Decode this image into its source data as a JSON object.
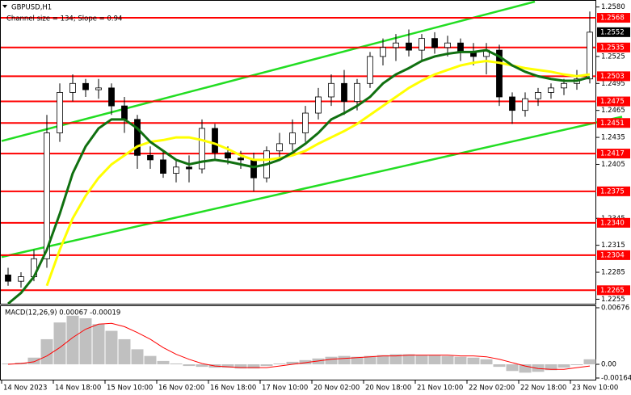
{
  "chart_data": [
    {
      "type": "candlestick",
      "title": "GBPUSD,H1",
      "subtitle": "Channel size = 134; Slope = 0.94",
      "categories": [
        "14 Nov 2023",
        null,
        null,
        null,
        "14 Nov 18:00",
        null,
        null,
        null,
        "15 Nov 10:00",
        null,
        null,
        null,
        "16 Nov 02:00",
        null,
        null,
        null,
        "16 Nov 18:00",
        null,
        null,
        null,
        "17 Nov 10:00",
        null,
        null,
        null,
        "20 Nov 02:00",
        null,
        null,
        null,
        "20 Nov 18:00",
        null,
        null,
        null,
        "21 Nov 10:00",
        null,
        null,
        null,
        "22 Nov 02:00",
        null,
        null,
        null,
        "22 Nov 18:00",
        null,
        null,
        null,
        "23 Nov 10:00",
        null
      ],
      "open": [
        1.2282,
        1.2275,
        1.228,
        1.23,
        1.244,
        1.2485,
        1.2495,
        1.2488,
        1.249,
        1.247,
        1.2455,
        1.2415,
        1.241,
        1.2395,
        1.2402,
        1.24,
        1.2445,
        1.2418,
        1.2412,
        1.241,
        1.239,
        1.242,
        1.2428,
        1.244,
        1.2462,
        1.248,
        1.2495,
        1.2475,
        1.2495,
        1.2525,
        1.2535,
        1.254,
        1.2532,
        1.2545,
        1.2535,
        1.254,
        1.253,
        1.2525,
        1.2532,
        1.248,
        1.2465,
        1.2478,
        1.2485,
        1.249,
        1.2495,
        1.25
      ],
      "high": [
        1.229,
        1.2285,
        1.231,
        1.246,
        1.2495,
        1.2505,
        1.25,
        1.25,
        1.2495,
        1.248,
        1.246,
        1.2425,
        1.242,
        1.241,
        1.2415,
        1.2455,
        1.245,
        1.2425,
        1.242,
        1.2418,
        1.2425,
        1.244,
        1.2455,
        1.247,
        1.249,
        1.2505,
        1.251,
        1.25,
        1.253,
        1.2545,
        1.255,
        1.2555,
        1.255,
        1.2552,
        1.2548,
        1.2545,
        1.254,
        1.254,
        1.2538,
        1.2485,
        1.2485,
        1.249,
        1.2495,
        1.25,
        1.251,
        1.2575
      ],
      "low": [
        1.227,
        1.2268,
        1.2275,
        1.229,
        1.243,
        1.2475,
        1.248,
        1.2478,
        1.246,
        1.244,
        1.24,
        1.24,
        1.239,
        1.2385,
        1.2385,
        1.2395,
        1.241,
        1.2405,
        1.24,
        1.2375,
        1.2385,
        1.241,
        1.242,
        1.243,
        1.2455,
        1.247,
        1.246,
        1.2465,
        1.249,
        1.2515,
        1.252,
        1.2525,
        1.252,
        1.2528,
        1.2525,
        1.252,
        1.2515,
        1.2505,
        1.247,
        1.245,
        1.2458,
        1.247,
        1.2478,
        1.2482,
        1.2488,
        1.2495
      ],
      "close": [
        1.2275,
        1.228,
        1.23,
        1.244,
        1.2485,
        1.2495,
        1.2488,
        1.249,
        1.247,
        1.2455,
        1.2415,
        1.241,
        1.2395,
        1.2402,
        1.24,
        1.2445,
        1.2418,
        1.2412,
        1.241,
        1.239,
        1.242,
        1.2428,
        1.244,
        1.2462,
        1.248,
        1.2495,
        1.2475,
        1.2495,
        1.2525,
        1.2535,
        1.254,
        1.2532,
        1.2545,
        1.2535,
        1.254,
        1.253,
        1.2525,
        1.2532,
        1.248,
        1.2465,
        1.2478,
        1.2485,
        1.249,
        1.2495,
        1.25,
        1.2552
      ],
      "up_color": "#ffffff",
      "down_color": "#000000",
      "lines": [
        {
          "color": "#ffff00",
          "values": [
            null,
            null,
            null,
            1.227,
            1.231,
            1.2345,
            1.237,
            1.239,
            1.2405,
            1.2415,
            1.2425,
            1.243,
            1.2432,
            1.2435,
            1.2435,
            1.2432,
            1.2428,
            1.2422,
            1.2415,
            1.241,
            1.241,
            1.2412,
            1.2415,
            1.242,
            1.2428,
            1.2435,
            1.2442,
            1.245,
            1.246,
            1.247,
            1.248,
            1.249,
            1.2498,
            1.2505,
            1.251,
            1.2515,
            1.2518,
            1.252,
            1.2518,
            1.2515,
            1.2512,
            1.251,
            1.2508,
            1.2505,
            1.2503,
            1.2505
          ]
        },
        {
          "color": "#107010",
          "values": [
            1.225,
            1.2262,
            1.228,
            1.231,
            1.235,
            1.2395,
            1.2425,
            1.2445,
            1.2455,
            1.2455,
            1.2445,
            1.243,
            1.242,
            1.241,
            1.2405,
            1.2408,
            1.241,
            1.2408,
            1.2405,
            1.2402,
            1.2405,
            1.241,
            1.2418,
            1.2428,
            1.244,
            1.2455,
            1.2462,
            1.247,
            1.248,
            1.2495,
            1.2505,
            1.2512,
            1.252,
            1.2525,
            1.2528,
            1.253,
            1.253,
            1.2532,
            1.2525,
            1.2515,
            1.2508,
            1.2503,
            1.25,
            1.2498,
            1.2498,
            1.2502
          ]
        }
      ],
      "trend_lines": [
        {
          "color": "#22dd22",
          "x": [
            0,
            41.25
          ],
          "values": [
            1.2431,
            1.2586
          ]
        },
        {
          "color": "#22dd22",
          "x": [
            0,
            48
          ],
          "values": [
            1.2302,
            1.2458
          ]
        }
      ],
      "ylim": [
        1.225,
        1.2586
      ],
      "yticks": [
        {
          "value": 1.258,
          "label": "1.2580"
        },
        1.2525,
        1.2495,
        1.2465,
        1.2435,
        1.2405,
        1.2345,
        1.2315,
        1.2285,
        1.2255
      ],
      "levels": [
        1.2568,
        1.2535,
        1.2503,
        1.2475,
        1.2451,
        1.2417,
        1.2375,
        {
          "value": 1.234,
          "label": "1.2340"
        },
        1.2304,
        1.2265
      ],
      "level_color": "#ff0000",
      "last_price": 1.2552
    },
    {
      "type": "macd",
      "title": "MACD(12,26,9) 0.00067 -0.00019",
      "values": [
        0.0001,
        0.0002,
        0.0008,
        0.003,
        0.005,
        0.0058,
        0.0055,
        0.0048,
        0.004,
        0.003,
        0.0018,
        0.001,
        0.0004,
        0.0001,
        -0.0002,
        -0.0003,
        -0.0004,
        -0.0004,
        -0.0005,
        -0.0005,
        -0.0002,
        0.0001,
        0.0003,
        0.0005,
        0.0007,
        0.0009,
        0.001,
        0.0009,
        0.001,
        0.0011,
        0.0012,
        0.0012,
        0.0011,
        0.0011,
        0.001,
        0.0009,
        0.0008,
        0.0006,
        -0.0003,
        -0.0008,
        -0.001,
        -0.0009,
        -0.0007,
        -0.0004,
        -0.0001,
        0.0006
      ],
      "signal": [
        0.0,
        0.0001,
        0.0003,
        0.001,
        0.002,
        0.0032,
        0.0042,
        0.0048,
        0.0049,
        0.0045,
        0.0038,
        0.003,
        0.002,
        0.0012,
        0.0006,
        0.0001,
        -0.0002,
        -0.0003,
        -0.0004,
        -0.0004,
        -0.0004,
        -0.0002,
        0.0,
        0.0002,
        0.0004,
        0.0006,
        0.0007,
        0.0008,
        0.0009,
        0.001,
        0.001,
        0.0011,
        0.0011,
        0.0011,
        0.0011,
        0.001,
        0.001,
        0.0009,
        0.0006,
        0.0002,
        -0.0002,
        -0.0005,
        -0.0006,
        -0.0006,
        -0.0004,
        -0.0002
      ],
      "color": "#c0c0c0",
      "signal_color": "#ff0000",
      "ylim": [
        -0.00164,
        0.00676
      ],
      "yticks": [
        0.00676,
        {
          "value": 0,
          "label": "0.00"
        },
        -0.00164
      ]
    }
  ]
}
